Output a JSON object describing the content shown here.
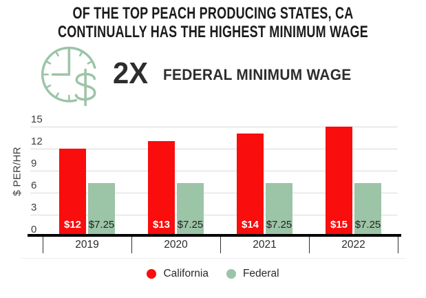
{
  "title": {
    "line1": "OF THE TOP PEACH PRODUCING STATES, CA",
    "line2": "CONTINUALLY HAS THE HIGHEST MINIMUM WAGE"
  },
  "header": {
    "multiplier": "2X",
    "label": "FEDERAL MINIMUM WAGE",
    "icon": "clock-dollar-icon",
    "icon_color": "#9cc4a7"
  },
  "chart_data": {
    "type": "bar",
    "categories": [
      "2019",
      "2020",
      "2021",
      "2022"
    ],
    "series": [
      {
        "name": "California",
        "color": "#f90d0d",
        "values": [
          12,
          13,
          14,
          15
        ],
        "bar_labels": [
          "$12",
          "$13",
          "$14",
          "$15"
        ],
        "bar_label_color": "#ffffff",
        "bar_label_bold": true
      },
      {
        "name": "Federal",
        "color": "#9cc4a7",
        "values": [
          7.25,
          7.25,
          7.25,
          7.25
        ],
        "bar_labels": [
          "$7.25",
          "$7.25",
          "$7.25",
          "$7.25"
        ],
        "bar_label_color": "#1f1f1f",
        "bar_label_bold": false
      }
    ],
    "xlabel": "",
    "ylabel": "$ PER/HR",
    "ylim": [
      0,
      15
    ],
    "yticks": [
      0,
      3,
      6,
      9,
      12,
      15
    ],
    "grid": true,
    "gridline_color": "#d9d9d9",
    "axis_color": "#000000",
    "legend_position": "bottom"
  }
}
